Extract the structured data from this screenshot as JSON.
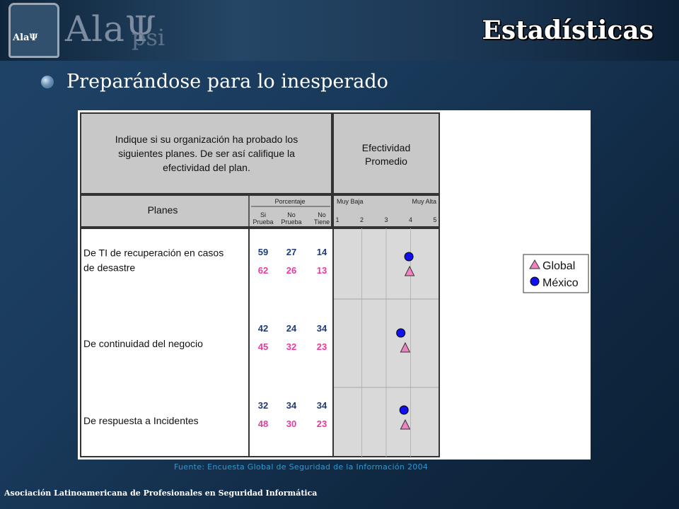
{
  "header": {
    "logo_text": "AlaΨ",
    "brand": "AlaΨ",
    "brand_suffix": "psi",
    "title": "Estadísticas"
  },
  "subtitle": "Preparándose para lo inesperado",
  "source": "Fuente: Encuesta Global de Seguridad de la Información 2004",
  "footer": "Asociación Latinoamericana de Profesionales en Seguridad Informática",
  "colors": {
    "global": "#ee82c2",
    "mexico": "#1010ee",
    "mexico_text": "#1f3b78",
    "global_text": "#e83a9e"
  },
  "chart_data": {
    "type": "table",
    "question": [
      "Indique si su organización ha probado los",
      "siguientes planes. De ser así califique la",
      "efectividad del plan."
    ],
    "effectiveness_header": [
      "Efectividad",
      "Promedio"
    ],
    "planes_header": "Planes",
    "percent_header": "Porcentaje",
    "percent_columns": [
      [
        "Si",
        "Prueba"
      ],
      [
        "No",
        "Prueba"
      ],
      [
        "No",
        "Tiene"
      ]
    ],
    "scale_low": "Muy Baja",
    "scale_high": "Muy Alta",
    "scale_ticks": [
      "1",
      "2",
      "3",
      "4",
      "5"
    ],
    "scale_range": [
      1,
      5
    ],
    "legend": [
      "Global",
      "México"
    ],
    "rows": [
      {
        "label": [
          "De TI de recuperación en casos",
          "de desastre"
        ],
        "mexico": [
          "59",
          "27",
          "14"
        ],
        "global": [
          "62",
          "26",
          "13"
        ],
        "mexico_score": 3.93,
        "global_score": 3.96
      },
      {
        "label": [
          "De continuidad del negocio"
        ],
        "mexico": [
          "42",
          "24",
          "34"
        ],
        "global": [
          "45",
          "32",
          "23"
        ],
        "mexico_score": 3.6,
        "global_score": 3.78
      },
      {
        "label": [
          "De respuesta a Incidentes"
        ],
        "mexico": [
          "32",
          "34",
          "34"
        ],
        "global": [
          "48",
          "30",
          "23"
        ],
        "mexico_score": 3.73,
        "global_score": 3.78
      }
    ]
  }
}
